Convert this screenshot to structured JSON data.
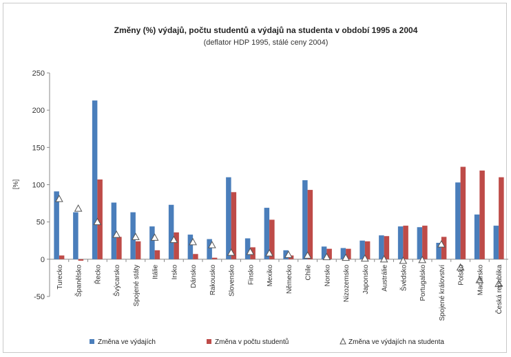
{
  "chart_data": {
    "type": "bar",
    "title": "Změny (%) výdajů, počtu studentů a výdajů na studenta v období 1995 a 2004",
    "subtitle": "(deflator HDP 1995, stálé ceny 2004)",
    "ylabel": "[%]",
    "xlabel": "",
    "ylim": [
      -50,
      250
    ],
    "yticks": [
      -50,
      0,
      50,
      100,
      150,
      200,
      250
    ],
    "grid": false,
    "legend_position": "bottom",
    "categories": [
      "Turecko",
      "Španělsko",
      "Řecko",
      "Švýcarsko",
      "Spojené státy",
      "Itálie",
      "Irsko",
      "Dánsko",
      "Rakousko",
      "Slovensko",
      "Finsko",
      "Mexiko",
      "Německo",
      "Chile",
      "Norsko",
      "Nizozemsko",
      "Japonsko",
      "Austrálie",
      "Švédsko",
      "Portugalsko",
      "Spojené království",
      "Polsko",
      "Maďarsko",
      "Česká republika"
    ],
    "series": [
      {
        "name": "Změna ve výdajích",
        "kind": "bar",
        "color": "#4a7ebb",
        "values": [
          91,
          63,
          213,
          76,
          63,
          44,
          73,
          33,
          27,
          110,
          28,
          69,
          12,
          106,
          17,
          15,
          25,
          32,
          44,
          43,
          22,
          103,
          60,
          45
        ]
      },
      {
        "name": "Změna v počtu studentů",
        "kind": "bar",
        "color": "#be4b48",
        "values": [
          5,
          -2,
          107,
          30,
          24,
          12,
          36,
          7,
          2,
          90,
          16,
          53,
          5,
          93,
          14,
          14,
          24,
          31,
          45,
          45,
          30,
          124,
          119,
          110
        ]
      },
      {
        "name": "Změna ve výdajích na studenta",
        "kind": "marker",
        "color": "#ffffff",
        "values": [
          81,
          68,
          50,
          33,
          30,
          29,
          26,
          23,
          19,
          9,
          10,
          8,
          6,
          5,
          3,
          2,
          1,
          0,
          -2,
          -1,
          20,
          -11,
          -28,
          -33
        ]
      }
    ]
  }
}
